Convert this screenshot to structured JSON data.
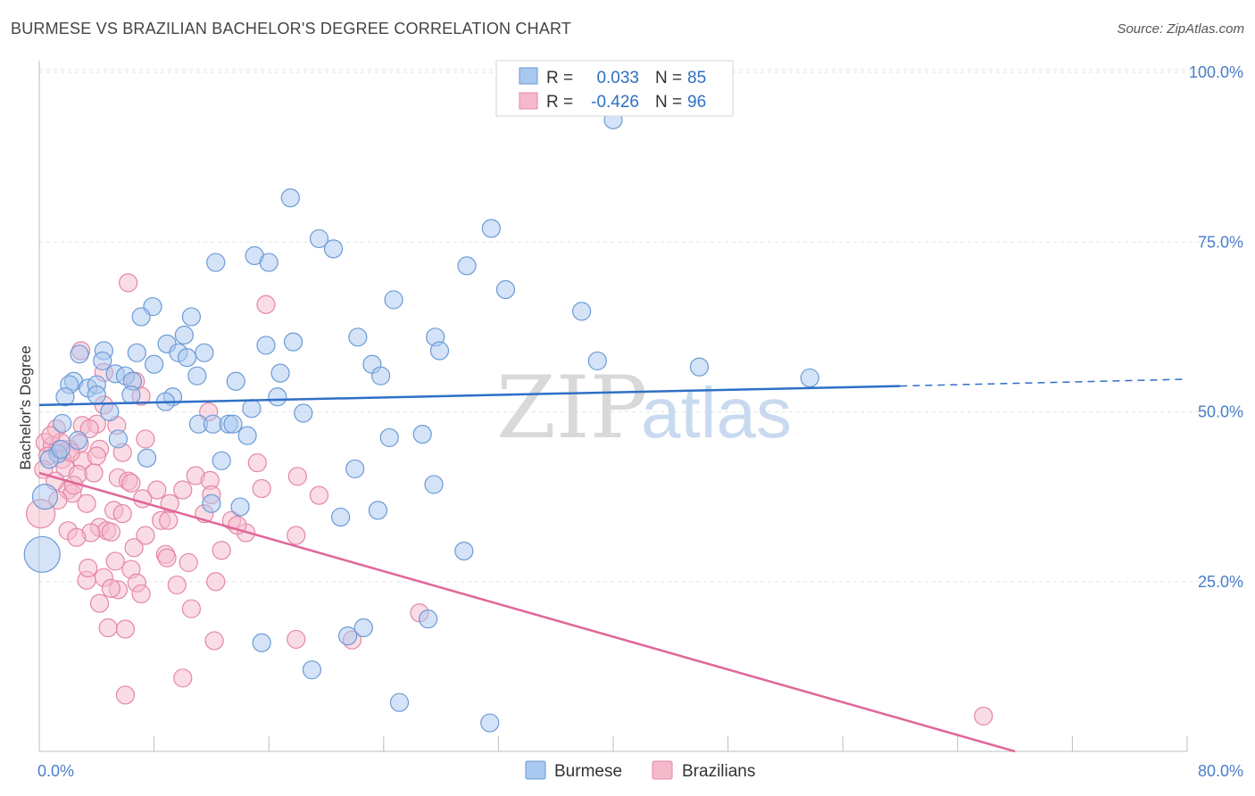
{
  "title": "BURMESE VS BRAZILIAN BACHELOR'S DEGREE CORRELATION CHART",
  "source": "Source: ZipAtlas.com",
  "watermark": {
    "zip": "ZIP",
    "atlas": "atlas"
  },
  "colors": {
    "burmese_fill": "#a9c8ef",
    "burmese_stroke": "#6a9ad6",
    "burmese_line": "#2f6fc6",
    "brazilian_fill": "#f6b9cc",
    "brazilian_stroke": "#e486a6",
    "brazilian_line": "#e0679a",
    "tick_label": "#4a7ec9",
    "grid": "#e3e3e3"
  },
  "legend": {
    "r_label": "R =",
    "n_label": "N =",
    "burmese": {
      "r": "0.033",
      "n": "85"
    },
    "brazilian": {
      "r": "-0.426",
      "n": "96"
    }
  },
  "chart_data": {
    "type": "scatter",
    "xlabel": "",
    "ylabel": "Bachelor's Degree",
    "xlim": [
      0,
      80
    ],
    "ylim": [
      0,
      100
    ],
    "x_tick_labels": [
      "0.0%",
      "80.0%"
    ],
    "y_ticks": [
      25,
      50,
      75,
      100
    ],
    "y_tick_labels": [
      "25.0%",
      "50.0%",
      "75.0%",
      "100.0%"
    ],
    "grid": true,
    "legend_position": "top-center",
    "series": [
      {
        "name": "Burmese",
        "color": "#a9c8ef",
        "r": 0.033,
        "n": 85,
        "trend": {
          "x0": 0,
          "y0": 51.0,
          "x1": 60,
          "y1": 53.8,
          "dashed_to_x": 80,
          "dashed_to_y": 54.8
        },
        "points": [
          [
            40.0,
            93.0,
            10
          ],
          [
            17.5,
            81.5,
            10
          ],
          [
            31.5,
            77.0,
            10
          ],
          [
            19.5,
            75.5,
            10
          ],
          [
            20.5,
            74.0,
            10
          ],
          [
            15.0,
            73.0,
            10
          ],
          [
            12.3,
            72.0,
            10
          ],
          [
            16.0,
            72.0,
            10
          ],
          [
            29.8,
            71.5,
            10
          ],
          [
            32.5,
            68.0,
            10
          ],
          [
            24.7,
            66.5,
            10
          ],
          [
            7.9,
            65.5,
            10
          ],
          [
            7.1,
            64.0,
            10
          ],
          [
            10.6,
            64.0,
            10
          ],
          [
            37.8,
            64.8,
            10
          ],
          [
            10.1,
            61.3,
            10
          ],
          [
            22.2,
            61.0,
            10
          ],
          [
            27.6,
            61.0,
            10
          ],
          [
            17.7,
            60.3,
            10
          ],
          [
            8.9,
            60.0,
            10
          ],
          [
            15.8,
            59.8,
            10
          ],
          [
            4.5,
            59.0,
            10
          ],
          [
            6.8,
            58.7,
            10
          ],
          [
            9.7,
            58.7,
            10
          ],
          [
            11.5,
            58.7,
            10
          ],
          [
            27.9,
            59.0,
            10
          ],
          [
            2.8,
            58.5,
            10
          ],
          [
            10.3,
            58.0,
            10
          ],
          [
            4.4,
            57.5,
            10
          ],
          [
            8.0,
            57.0,
            10
          ],
          [
            23.2,
            57.0,
            10
          ],
          [
            38.9,
            57.5,
            10
          ],
          [
            46.0,
            56.6,
            10
          ],
          [
            16.8,
            55.7,
            10
          ],
          [
            5.3,
            55.6,
            10
          ],
          [
            6.0,
            55.3,
            10
          ],
          [
            11.0,
            55.3,
            10
          ],
          [
            23.8,
            55.3,
            10
          ],
          [
            53.7,
            55.0,
            10
          ],
          [
            2.4,
            54.5,
            10
          ],
          [
            2.1,
            54.0,
            10
          ],
          [
            6.5,
            54.5,
            10
          ],
          [
            13.7,
            54.5,
            10
          ],
          [
            3.4,
            53.5,
            10
          ],
          [
            4.0,
            54.0,
            10
          ],
          [
            6.4,
            52.5,
            10
          ],
          [
            1.8,
            52.2,
            10
          ],
          [
            4.0,
            52.5,
            10
          ],
          [
            9.3,
            52.2,
            10
          ],
          [
            16.6,
            52.2,
            10
          ],
          [
            8.8,
            51.5,
            10
          ],
          [
            14.8,
            50.5,
            10
          ],
          [
            4.9,
            50.0,
            10
          ],
          [
            18.4,
            49.8,
            10
          ],
          [
            1.6,
            48.3,
            10
          ],
          [
            11.1,
            48.2,
            10
          ],
          [
            12.1,
            48.2,
            10
          ],
          [
            13.2,
            48.2,
            10
          ],
          [
            13.5,
            48.2,
            10
          ],
          [
            14.5,
            46.5,
            10
          ],
          [
            26.7,
            46.7,
            10
          ],
          [
            24.4,
            46.2,
            10
          ],
          [
            5.5,
            46.0,
            10
          ],
          [
            2.7,
            45.8,
            10
          ],
          [
            1.3,
            43.8,
            10
          ],
          [
            0.7,
            43.0,
            10
          ],
          [
            7.5,
            43.2,
            10
          ],
          [
            12.7,
            42.8,
            10
          ],
          [
            22.0,
            41.6,
            10
          ],
          [
            27.5,
            39.3,
            10
          ],
          [
            0.4,
            37.5,
            14
          ],
          [
            12.0,
            36.5,
            10
          ],
          [
            14.0,
            36.0,
            10
          ],
          [
            23.6,
            35.5,
            10
          ],
          [
            21.0,
            34.5,
            10
          ],
          [
            0.2,
            29.0,
            20
          ],
          [
            29.6,
            29.5,
            10
          ],
          [
            27.1,
            19.5,
            10
          ],
          [
            22.6,
            18.2,
            10
          ],
          [
            21.5,
            17.0,
            10
          ],
          [
            15.5,
            16.0,
            10
          ],
          [
            19.0,
            12.0,
            10
          ],
          [
            25.1,
            7.2,
            10
          ],
          [
            31.4,
            4.2,
            10
          ],
          [
            1.5,
            44.5,
            10
          ]
        ]
      },
      {
        "name": "Brazilians",
        "color": "#f6b9cc",
        "r": -0.426,
        "n": 96,
        "trend": {
          "x0": 0,
          "y0": 41.0,
          "x1": 68,
          "y1": 0
        },
        "points": [
          [
            6.2,
            69.0,
            10
          ],
          [
            15.8,
            65.8,
            10
          ],
          [
            2.9,
            59.0,
            10
          ],
          [
            4.5,
            55.8,
            10
          ],
          [
            6.7,
            54.5,
            10
          ],
          [
            7.1,
            52.3,
            10
          ],
          [
            4.5,
            51.0,
            10
          ],
          [
            11.8,
            50.0,
            10
          ],
          [
            3.0,
            48.0,
            10
          ],
          [
            4.0,
            48.2,
            10
          ],
          [
            5.4,
            48.0,
            10
          ],
          [
            1.2,
            47.5,
            10
          ],
          [
            3.5,
            47.5,
            10
          ],
          [
            0.4,
            45.5,
            10
          ],
          [
            7.4,
            46.0,
            10
          ],
          [
            2.8,
            45.3,
            10
          ],
          [
            0.9,
            45.0,
            10
          ],
          [
            1.3,
            44.5,
            10
          ],
          [
            2.1,
            44.5,
            10
          ],
          [
            4.2,
            44.5,
            10
          ],
          [
            5.8,
            44.0,
            10
          ],
          [
            0.6,
            43.5,
            10
          ],
          [
            1.6,
            43.0,
            10
          ],
          [
            3.0,
            42.8,
            10
          ],
          [
            1.8,
            41.8,
            10
          ],
          [
            0.3,
            41.5,
            10
          ],
          [
            2.7,
            40.8,
            10
          ],
          [
            10.9,
            40.6,
            10
          ],
          [
            18.0,
            40.5,
            10
          ],
          [
            5.5,
            40.3,
            10
          ],
          [
            6.2,
            39.8,
            10
          ],
          [
            6.4,
            39.5,
            10
          ],
          [
            11.9,
            39.9,
            10
          ],
          [
            15.5,
            38.7,
            10
          ],
          [
            2.0,
            38.5,
            10
          ],
          [
            8.2,
            38.5,
            10
          ],
          [
            10.0,
            38.5,
            10
          ],
          [
            2.3,
            38.0,
            10
          ],
          [
            12.0,
            37.8,
            10
          ],
          [
            19.5,
            37.7,
            10
          ],
          [
            7.2,
            37.2,
            10
          ],
          [
            1.3,
            37.0,
            10
          ],
          [
            3.3,
            36.5,
            10
          ],
          [
            0.1,
            35.0,
            16
          ],
          [
            5.2,
            35.5,
            10
          ],
          [
            5.8,
            35.0,
            10
          ],
          [
            8.5,
            34.0,
            10
          ],
          [
            9.0,
            34.0,
            10
          ],
          [
            13.4,
            34.0,
            10
          ],
          [
            4.2,
            33.0,
            10
          ],
          [
            2.0,
            32.5,
            10
          ],
          [
            4.7,
            32.5,
            10
          ],
          [
            3.6,
            32.2,
            10
          ],
          [
            5.0,
            32.3,
            10
          ],
          [
            7.4,
            31.8,
            10
          ],
          [
            14.4,
            32.2,
            10
          ],
          [
            17.9,
            31.8,
            10
          ],
          [
            2.6,
            31.5,
            10
          ],
          [
            8.8,
            29.0,
            10
          ],
          [
            10.4,
            27.8,
            10
          ],
          [
            6.4,
            26.8,
            10
          ],
          [
            4.5,
            25.6,
            10
          ],
          [
            3.3,
            25.2,
            10
          ],
          [
            6.8,
            24.8,
            10
          ],
          [
            12.3,
            25.0,
            10
          ],
          [
            9.6,
            24.5,
            10
          ],
          [
            5.5,
            23.8,
            10
          ],
          [
            5.0,
            24.0,
            10
          ],
          [
            7.1,
            23.2,
            10
          ],
          [
            4.2,
            21.8,
            10
          ],
          [
            10.6,
            21.0,
            10
          ],
          [
            26.5,
            20.4,
            10
          ],
          [
            4.8,
            18.2,
            10
          ],
          [
            6.0,
            18.0,
            10
          ],
          [
            12.2,
            16.3,
            10
          ],
          [
            17.9,
            16.5,
            10
          ],
          [
            21.8,
            16.4,
            10
          ],
          [
            10.0,
            10.8,
            10
          ],
          [
            6.0,
            8.3,
            10
          ],
          [
            65.8,
            5.2,
            10
          ],
          [
            2.2,
            44.0,
            10
          ],
          [
            1.5,
            45.5,
            10
          ],
          [
            3.8,
            41.0,
            10
          ],
          [
            9.1,
            36.5,
            10
          ],
          [
            11.5,
            35.0,
            10
          ],
          [
            13.8,
            33.3,
            10
          ],
          [
            6.6,
            30.0,
            10
          ],
          [
            2.4,
            39.2,
            10
          ],
          [
            4.0,
            43.5,
            10
          ],
          [
            0.8,
            46.5,
            10
          ],
          [
            15.2,
            42.5,
            10
          ],
          [
            1.1,
            39.8,
            10
          ],
          [
            5.3,
            28.0,
            10
          ],
          [
            8.9,
            28.5,
            10
          ],
          [
            12.7,
            29.6,
            10
          ],
          [
            3.4,
            27.0,
            10
          ]
        ]
      }
    ]
  },
  "bottom_legend": {
    "burmese": "Burmese",
    "brazilians": "Brazilians"
  }
}
